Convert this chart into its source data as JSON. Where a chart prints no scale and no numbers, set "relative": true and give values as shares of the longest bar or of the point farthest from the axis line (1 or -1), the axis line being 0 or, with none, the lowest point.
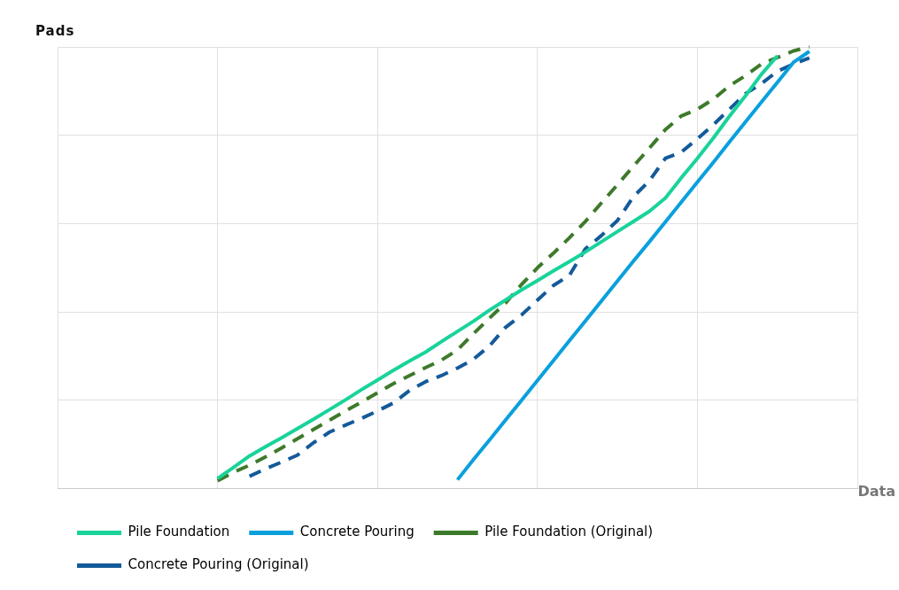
{
  "chart_data": {
    "type": "line",
    "relative": true,
    "xlabel": "Data",
    "ylabel": "Pads",
    "categories": [
      null,
      null,
      null,
      null,
      null,
      null,
      null,
      null,
      null,
      null,
      null,
      null,
      null,
      null,
      null,
      null,
      null,
      null,
      null,
      null,
      null,
      null,
      null,
      null,
      null,
      null,
      null,
      null,
      null,
      null,
      null,
      null,
      null,
      null,
      null,
      null,
      null,
      null,
      null,
      null,
      null,
      null,
      null,
      null,
      null,
      null,
      null,
      null,
      null,
      null,
      null
    ],
    "grid": true,
    "legend": "bottom left",
    "marker": "none",
    "series": [
      {
        "name": "Pile Foundation",
        "color": "#19d39a",
        "line_style": "solid",
        "values": [
          null,
          null,
          null,
          null,
          null,
          null,
          null,
          null,
          null,
          null,
          0.023,
          0.048,
          0.074,
          0.095,
          0.115,
          0.136,
          0.157,
          0.179,
          0.201,
          0.224,
          0.246,
          0.268,
          0.289,
          0.309,
          0.333,
          0.356,
          0.379,
          0.404,
          0.427,
          0.45,
          0.471,
          0.493,
          0.514,
          0.536,
          0.559,
          0.582,
          0.605,
          0.628,
          0.658,
          0.704,
          0.748,
          0.794,
          0.843,
          0.889,
          0.938,
          0.98,
          null,
          null,
          null,
          null,
          null
        ]
      },
      {
        "name": "Concrete Pouring",
        "color": "#0aa0dc",
        "line_style": "solid",
        "values": [
          null,
          null,
          null,
          null,
          null,
          null,
          null,
          null,
          null,
          null,
          null,
          null,
          null,
          null,
          null,
          null,
          null,
          null,
          null,
          null,
          null,
          null,
          null,
          null,
          null,
          0.02,
          0.066,
          0.11,
          0.155,
          0.2,
          0.245,
          0.29,
          0.335,
          0.38,
          0.425,
          0.47,
          0.515,
          0.559,
          0.604,
          0.649,
          0.694,
          0.739,
          0.785,
          0.83,
          0.875,
          0.92,
          0.965,
          0.99,
          null,
          null,
          null
        ]
      },
      {
        "name": "Pile Foundation (Original)",
        "color": "#3d7a2a",
        "line_style": "dashed",
        "values": [
          null,
          null,
          null,
          null,
          null,
          null,
          null,
          null,
          null,
          null,
          0.018,
          0.037,
          0.053,
          0.072,
          0.092,
          0.113,
          0.134,
          0.155,
          0.176,
          0.196,
          0.217,
          0.238,
          0.256,
          0.274,
          0.291,
          0.314,
          0.351,
          0.386,
          0.42,
          0.462,
          0.5,
          0.533,
          0.568,
          0.605,
          0.647,
          0.688,
          0.73,
          0.771,
          0.813,
          0.844,
          0.859,
          0.882,
          0.912,
          0.935,
          0.961,
          0.976,
          0.991,
          1,
          null,
          null,
          null
        ]
      },
      {
        "name": "Concrete Pouring (Original)",
        "color": "#145a9a",
        "line_style": "dashed",
        "values": [
          null,
          null,
          null,
          null,
          null,
          null,
          null,
          null,
          null,
          null,
          null,
          null,
          0.028,
          0.045,
          0.06,
          0.076,
          0.104,
          0.128,
          0.144,
          0.159,
          0.176,
          0.194,
          0.222,
          0.242,
          0.256,
          0.273,
          0.293,
          0.323,
          0.365,
          0.393,
          0.427,
          0.46,
          0.483,
          0.543,
          0.573,
          0.607,
          0.661,
          0.697,
          0.748,
          0.762,
          0.792,
          0.824,
          0.859,
          0.894,
          0.917,
          0.945,
          0.961,
          0.975,
          null,
          null,
          null
        ]
      }
    ]
  }
}
